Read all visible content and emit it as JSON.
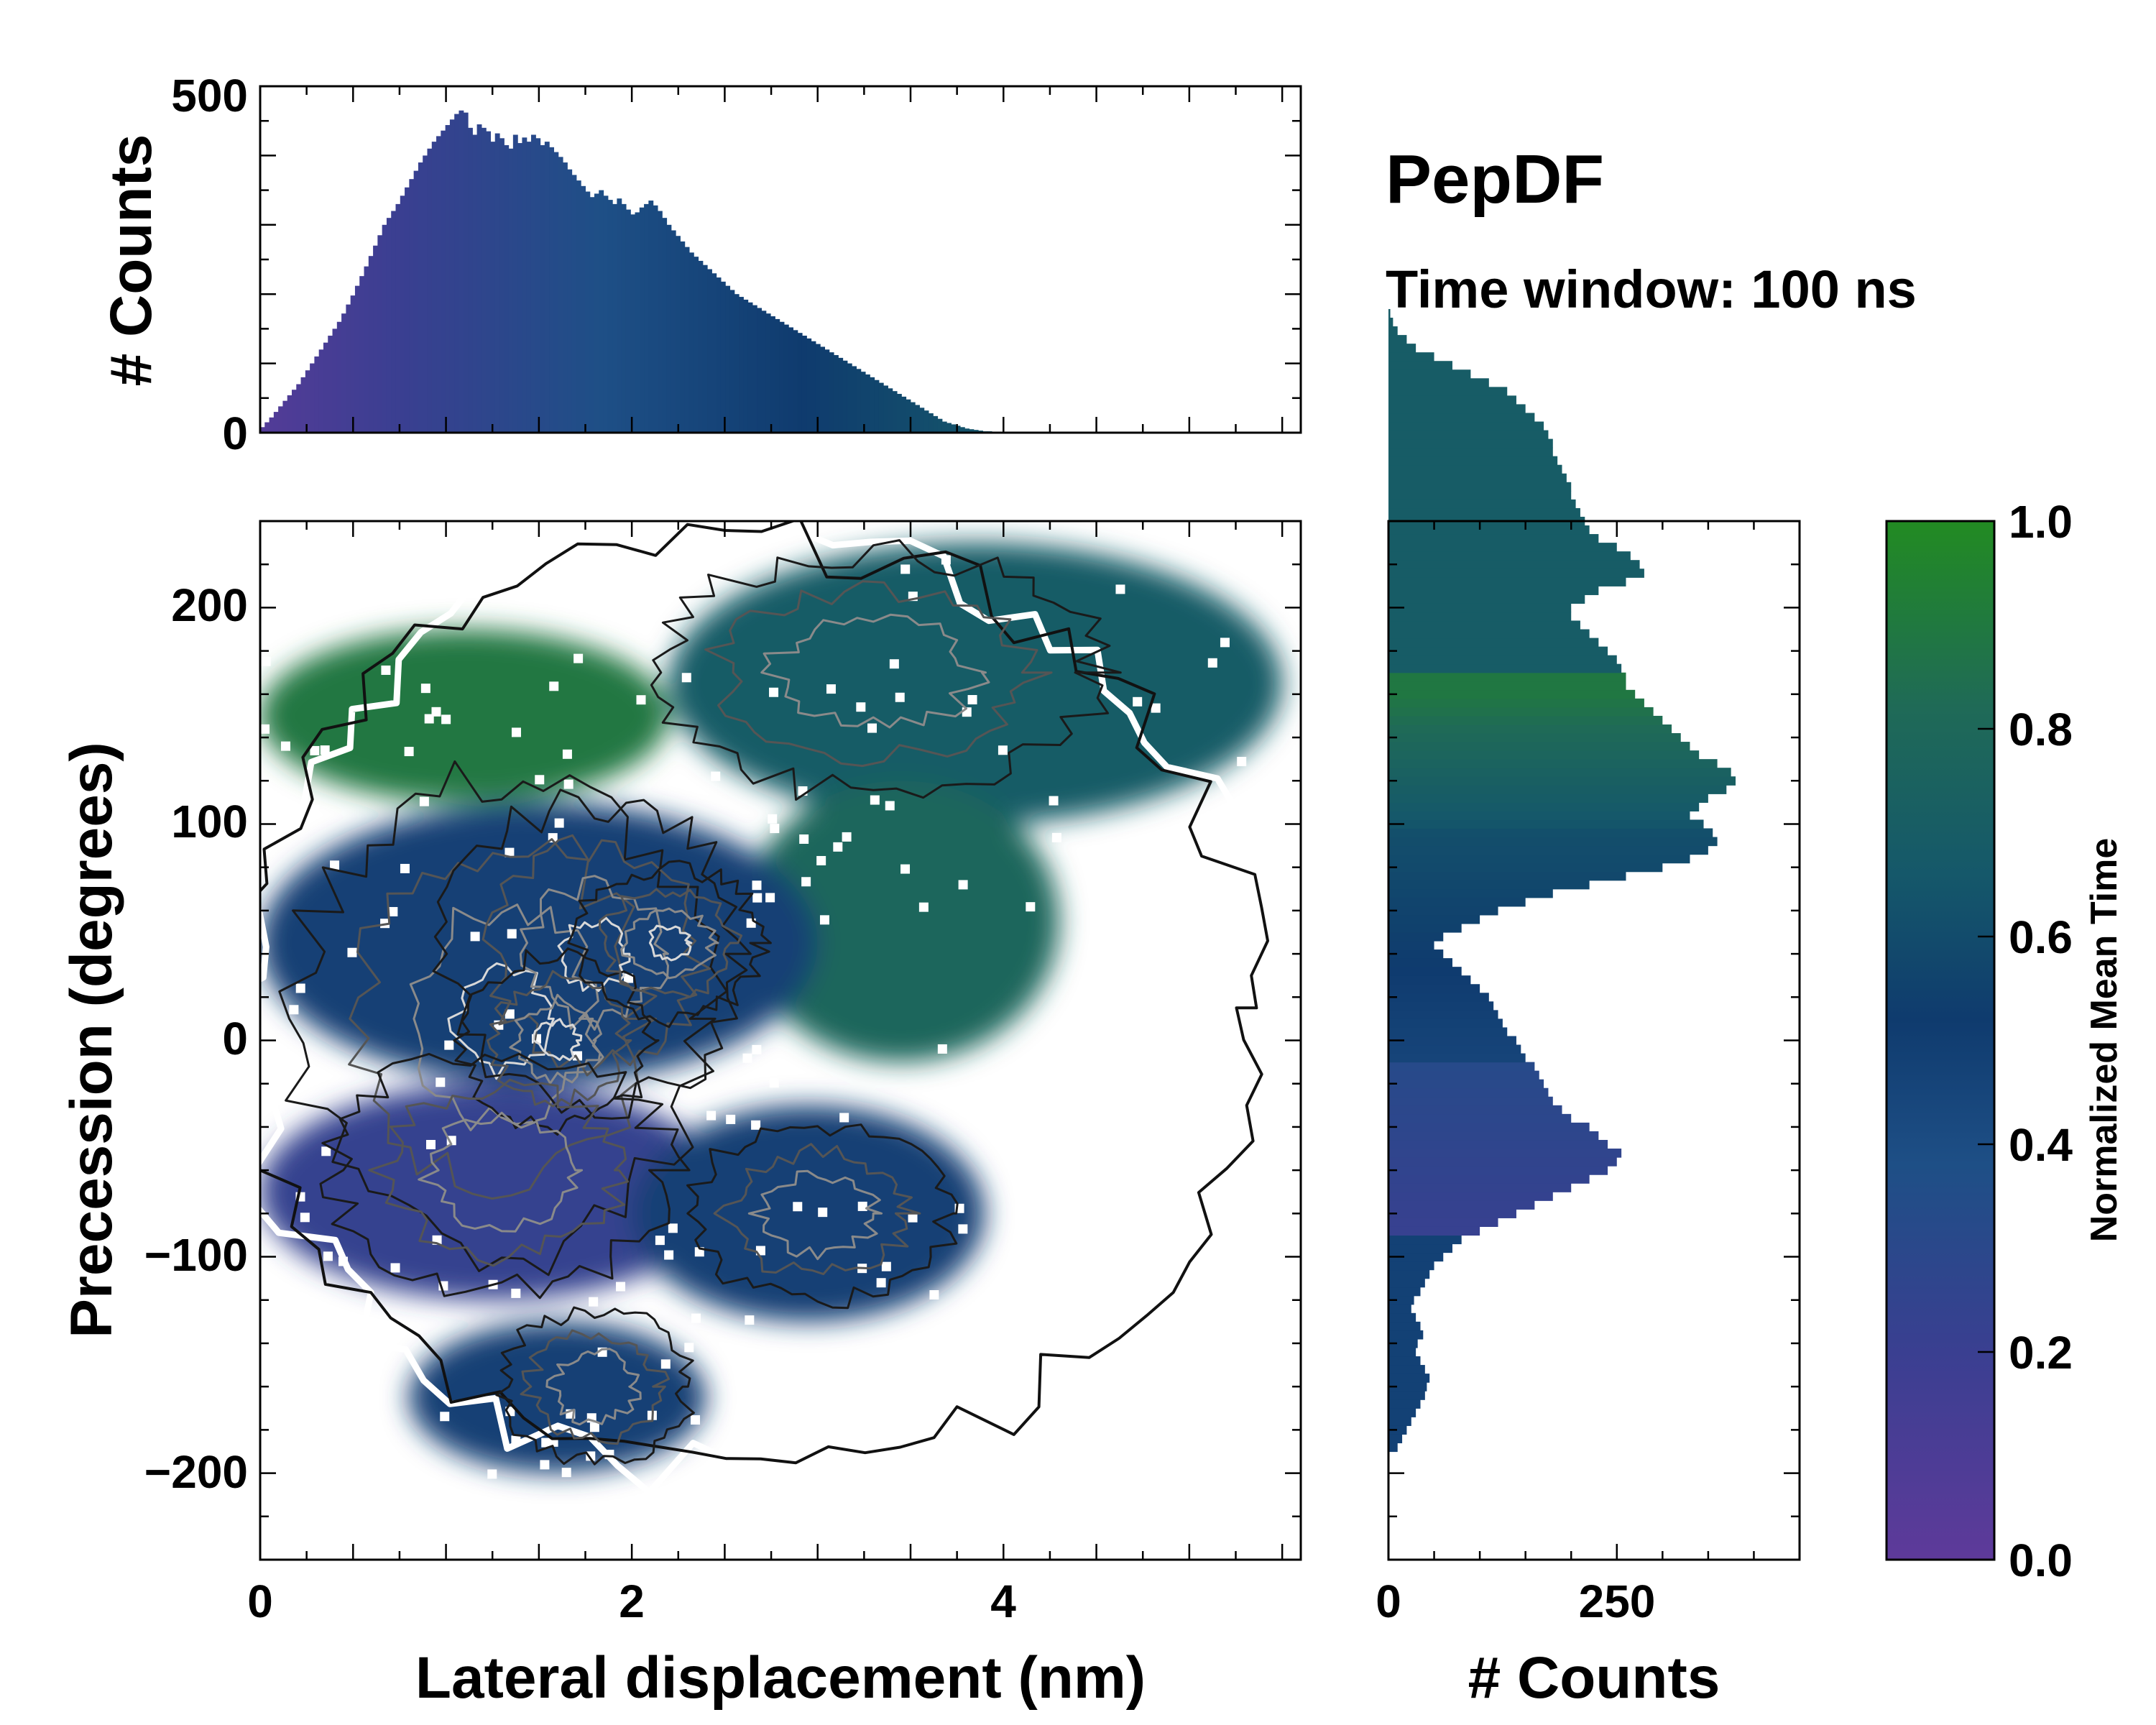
{
  "chart_data": [
    {
      "id": "top-histogram",
      "type": "bar",
      "orientation": "vertical",
      "xlim": [
        0,
        5.6
      ],
      "ylim": [
        0,
        500
      ],
      "yticks": [
        0,
        500
      ],
      "ylabel": "# Counts",
      "bin_width": 0.0243,
      "x_start": 0,
      "values": [
        8,
        15,
        22,
        30,
        38,
        46,
        54,
        62,
        70,
        80,
        90,
        100,
        110,
        120,
        130,
        140,
        150,
        160,
        172,
        185,
        198,
        212,
        226,
        240,
        255,
        270,
        285,
        300,
        310,
        320,
        330,
        342,
        354,
        366,
        378,
        390,
        400,
        410,
        420,
        428,
        436,
        444,
        452,
        460,
        465,
        462,
        440,
        430,
        445,
        440,
        435,
        420,
        432,
        425,
        415,
        410,
        430,
        418,
        426,
        420,
        430,
        425,
        415,
        420,
        412,
        405,
        398,
        390,
        380,
        372,
        364,
        356,
        348,
        340,
        345,
        350,
        342,
        336,
        330,
        338,
        330,
        322,
        315,
        318,
        325,
        330,
        335,
        328,
        320,
        310,
        300,
        292,
        284,
        276,
        268,
        260,
        254,
        248,
        242,
        236,
        230,
        224,
        218,
        212,
        206,
        200,
        196,
        192,
        188,
        184,
        180,
        176,
        172,
        168,
        164,
        160,
        156,
        152,
        148,
        144,
        140,
        136,
        132,
        128,
        124,
        120,
        116,
        112,
        108,
        104,
        100,
        96,
        92,
        88,
        84,
        80,
        76,
        72,
        68,
        64,
        60,
        56,
        52,
        48,
        44,
        40,
        36,
        32,
        28,
        24,
        20,
        16,
        14,
        12,
        10,
        8,
        6,
        5,
        4,
        3,
        2,
        2,
        1,
        1,
        1,
        1,
        1,
        0,
        0,
        0,
        0,
        0,
        0,
        0,
        0,
        0,
        0,
        0,
        0,
        0,
        0,
        0,
        0,
        0,
        0,
        0,
        0,
        0,
        0,
        0,
        0,
        0,
        0,
        0,
        0,
        0,
        0,
        0,
        0,
        0,
        0,
        0,
        0,
        0,
        0,
        0,
        0,
        0,
        0,
        0,
        0,
        0,
        0,
        0,
        0,
        0,
        0,
        0,
        0,
        0,
        0,
        0,
        0,
        0,
        0,
        0,
        0,
        0,
        0,
        0
      ],
      "colormap": "purple-blue-teal-green"
    },
    {
      "id": "side-histogram",
      "type": "bar",
      "orientation": "horizontal",
      "xlim": [
        0,
        450
      ],
      "ylim": [
        -240,
        240
      ],
      "xticks": [
        0,
        250
      ],
      "xlabel": "# Counts",
      "bin_height": 4,
      "y_start": -190,
      "values": [
        10,
        15,
        20,
        25,
        30,
        35,
        40,
        42,
        45,
        40,
        35,
        30,
        32,
        38,
        35,
        30,
        25,
        28,
        35,
        40,
        45,
        50,
        60,
        70,
        80,
        100,
        120,
        140,
        160,
        180,
        200,
        220,
        240,
        250,
        255,
        240,
        230,
        220,
        200,
        190,
        180,
        175,
        170,
        165,
        160,
        150,
        145,
        140,
        130,
        125,
        120,
        115,
        110,
        100,
        90,
        80,
        70,
        60,
        50,
        60,
        80,
        100,
        120,
        150,
        180,
        220,
        260,
        300,
        330,
        350,
        360,
        355,
        345,
        330,
        340,
        350,
        370,
        380,
        375,
        360,
        340,
        330,
        320,
        310,
        300,
        290,
        280,
        270,
        260,
        260,
        255,
        250,
        240,
        230,
        220,
        210,
        200,
        200,
        215,
        230,
        260,
        280,
        275,
        265,
        250,
        230,
        220,
        215,
        210,
        205,
        200,
        200,
        195,
        190,
        185,
        180,
        180,
        175,
        170,
        160,
        150,
        140,
        130,
        110,
        90,
        70,
        50,
        30,
        20,
        10,
        5,
        2,
        0
      ],
      "colormap": "purple-blue-teal-green"
    },
    {
      "id": "main-heatmap",
      "type": "heatmap",
      "xlim": [
        0,
        5.6
      ],
      "ylim": [
        -240,
        240
      ],
      "xticks": [
        0,
        2,
        4
      ],
      "yticks": [
        -200,
        -100,
        0,
        100,
        200
      ],
      "xlabel": "Lateral displacement (nm)",
      "ylabel": "Precession (degrees)",
      "overlay": "density contours",
      "regions": [
        {
          "name": "upper-right",
          "x": [
            2.2,
            5.5
          ],
          "y": [
            100,
            230
          ],
          "mean_time": 0.7
        },
        {
          "name": "left-upper",
          "x": [
            0.0,
            2.2
          ],
          "y": [
            110,
            190
          ],
          "mean_time": 0.9
        },
        {
          "name": "right-middle",
          "x": [
            2.6,
            4.3
          ],
          "y": [
            -10,
            120
          ],
          "mean_time": 0.8
        },
        {
          "name": "center-band",
          "x": [
            0.0,
            3.0
          ],
          "y": [
            -20,
            110
          ],
          "mean_time": 0.45
        },
        {
          "name": "lower-left",
          "x": [
            0.0,
            2.5
          ],
          "y": [
            -120,
            -20
          ],
          "mean_time": 0.2
        },
        {
          "name": "lower-right",
          "x": [
            2.0,
            3.9
          ],
          "y": [
            -130,
            -30
          ],
          "mean_time": 0.45
        },
        {
          "name": "bottom",
          "x": [
            0.8,
            2.4
          ],
          "y": [
            -200,
            -130
          ],
          "mean_time": 0.45
        }
      ]
    },
    {
      "id": "colorbar",
      "type": "colorbar",
      "range": [
        0.0,
        1.0
      ],
      "ticks": [
        0.0,
        0.2,
        0.4,
        0.6,
        0.8,
        1.0
      ],
      "label": "Normalized Mean Time",
      "colors": [
        "#5e3a9a",
        "#3a3f91",
        "#1e4f86",
        "#0f3b6e",
        "#15586a",
        "#1f6a57",
        "#228b22"
      ]
    }
  ],
  "labels": {
    "top_ylabel": "# Counts",
    "top_y0": "0",
    "top_y500": "500",
    "main_xlabel": "Lateral displacement (nm)",
    "main_ylabel": "Precession (degrees)",
    "x0": "0",
    "x2": "2",
    "x4": "4",
    "ym200": "−200",
    "ym100": "−100",
    "y0": "0",
    "y100": "100",
    "y200": "200",
    "side_xlabel": "# Counts",
    "side_x0": "0",
    "side_x250": "250",
    "cbar_label": "Normalized Mean Time",
    "c00": "0.0",
    "c02": "0.2",
    "c04": "0.4",
    "c06": "0.6",
    "c08": "0.8",
    "c10": "1.0"
  },
  "annotation": {
    "title": "PepDF",
    "subtitle": "Time window: 100 ns"
  }
}
